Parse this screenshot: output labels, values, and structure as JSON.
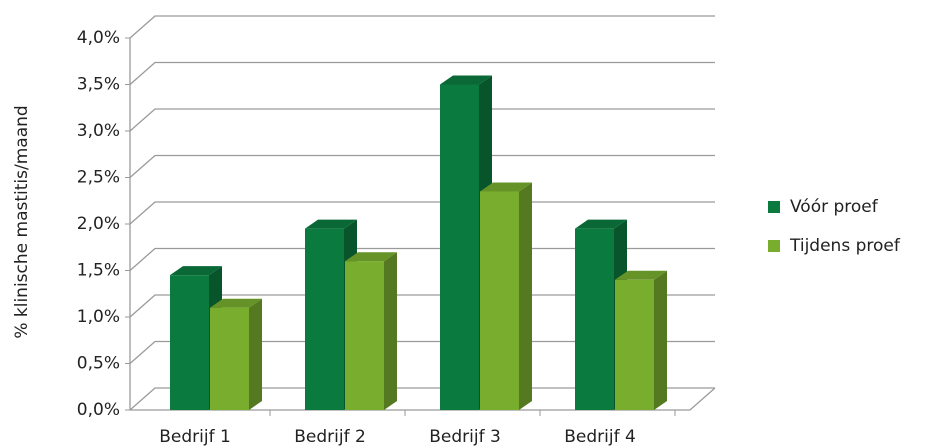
{
  "chart_data": {
    "type": "bar3d",
    "y_label": "% klinische mastitis/maand",
    "categories": [
      "Bedrijf 1",
      "Bedrijf 2",
      "Bedrijf 3",
      "Bedrijf 4"
    ],
    "series": [
      {
        "name": "Vóór proef",
        "color": "#0b7a3e",
        "values": [
          1.45,
          1.95,
          3.5,
          1.95
        ]
      },
      {
        "name": "Tijdens proef",
        "color": "#78ad2e",
        "values": [
          1.1,
          1.6,
          2.35,
          1.4
        ]
      }
    ],
    "ylim": [
      0,
      4
    ],
    "yticks": [
      {
        "value": 0,
        "label": "0,0%"
      },
      {
        "value": 0.5,
        "label": "0,5%"
      },
      {
        "value": 1,
        "label": "1,0%"
      },
      {
        "value": 1.5,
        "label": "1,5%"
      },
      {
        "value": 2,
        "label": "2,0%"
      },
      {
        "value": 2.5,
        "label": "2,5%"
      },
      {
        "value": 3,
        "label": "3,0%"
      },
      {
        "value": 3.5,
        "label": "3,5%"
      },
      {
        "value": 4,
        "label": "4,0%"
      }
    ],
    "grid": true,
    "legend": "right"
  }
}
